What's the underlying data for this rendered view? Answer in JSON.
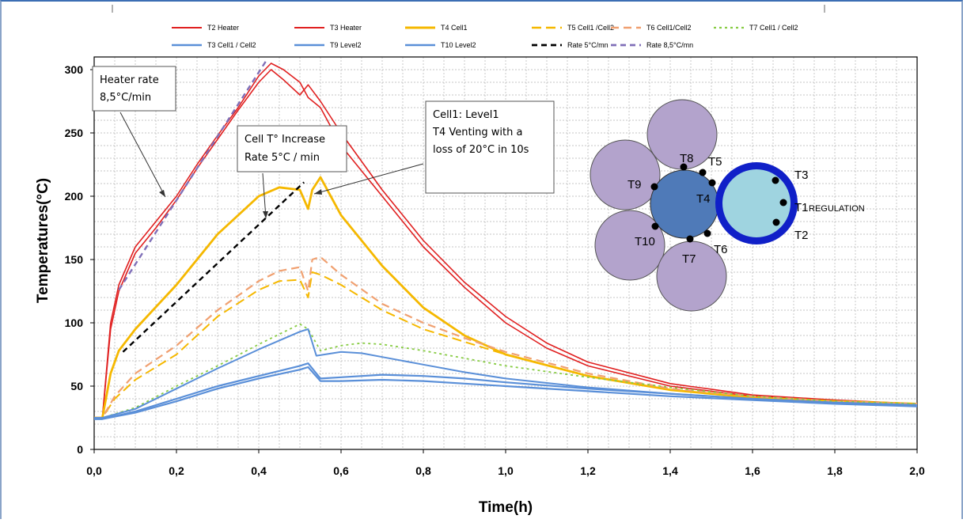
{
  "chart_data": {
    "type": "line",
    "xlabel": "Time(h)",
    "ylabel": "Temperatures(°C)",
    "xlim": [
      0,
      2
    ],
    "ylim": [
      0,
      310
    ],
    "xticks": [
      0,
      0.2,
      0.4,
      0.6,
      0.8,
      1.0,
      1.2,
      1.4,
      1.6,
      1.8,
      2.0
    ],
    "xtick_labels": [
      "0,0",
      "0,2",
      "0,4",
      "0,6",
      "0,8",
      "1,0",
      "1,2",
      "1,4",
      "1,6",
      "1,8",
      "2,0"
    ],
    "yticks": [
      0,
      50,
      100,
      150,
      200,
      250,
      300
    ],
    "ytick_labels": [
      "0",
      "50",
      "100",
      "150",
      "200",
      "250",
      "300"
    ],
    "grid": true,
    "legend_position": "top",
    "series": [
      {
        "name": "T2 Heater",
        "color": "#e02020",
        "dash": "solid",
        "width": 1.6,
        "x": [
          0.0,
          0.02,
          0.04,
          0.06,
          0.1,
          0.15,
          0.2,
          0.25,
          0.3,
          0.35,
          0.4,
          0.43,
          0.46,
          0.5,
          0.52,
          0.55,
          0.6,
          0.7,
          0.8,
          0.9,
          1.0,
          1.1,
          1.2,
          1.4,
          1.6,
          1.8,
          2.0
        ],
        "y": [
          25,
          25,
          100,
          130,
          160,
          180,
          200,
          225,
          248,
          270,
          295,
          305,
          300,
          290,
          278,
          270,
          240,
          200,
          160,
          128,
          100,
          80,
          66,
          50,
          42,
          38,
          36
        ]
      },
      {
        "name": "T3 Heater",
        "color": "#e02020",
        "dash": "solid",
        "width": 1.6,
        "x": [
          0.0,
          0.02,
          0.04,
          0.06,
          0.1,
          0.15,
          0.2,
          0.25,
          0.3,
          0.35,
          0.4,
          0.43,
          0.46,
          0.5,
          0.52,
          0.55,
          0.6,
          0.7,
          0.8,
          0.9,
          1.0,
          1.1,
          1.2,
          1.4,
          1.6,
          1.8,
          2.0
        ],
        "y": [
          25,
          25,
          95,
          125,
          155,
          175,
          197,
          222,
          245,
          268,
          290,
          300,
          292,
          280,
          288,
          275,
          250,
          205,
          165,
          132,
          105,
          84,
          69,
          52,
          43,
          39,
          36
        ]
      },
      {
        "name": "T4 Cell1",
        "color": "#f5b800",
        "dash": "solid",
        "width": 2.8,
        "x": [
          0.0,
          0.02,
          0.04,
          0.06,
          0.1,
          0.2,
          0.3,
          0.4,
          0.45,
          0.5,
          0.52,
          0.53,
          0.55,
          0.6,
          0.7,
          0.8,
          0.9,
          1.0,
          1.2,
          1.4,
          1.6,
          1.8,
          2.0
        ],
        "y": [
          25,
          25,
          60,
          78,
          95,
          130,
          170,
          200,
          207,
          205,
          190,
          205,
          215,
          185,
          145,
          112,
          90,
          75,
          58,
          47,
          41,
          38,
          36
        ]
      },
      {
        "name": "T5 Cell1 /Cell2",
        "color": "#f5b800",
        "dash": "12,6",
        "width": 2,
        "x": [
          0.0,
          0.02,
          0.05,
          0.1,
          0.2,
          0.3,
          0.4,
          0.45,
          0.5,
          0.52,
          0.53,
          0.55,
          0.6,
          0.7,
          0.8,
          0.9,
          1.0,
          1.2,
          1.4,
          1.6,
          1.8,
          2.0
        ],
        "y": [
          25,
          25,
          40,
          55,
          75,
          105,
          126,
          133,
          134,
          120,
          140,
          138,
          130,
          110,
          95,
          85,
          75,
          58,
          47,
          41,
          38,
          36
        ]
      },
      {
        "name": "T6 Cell1/Cell2",
        "color": "#f0a070",
        "dash": "10,6",
        "width": 2.2,
        "x": [
          0.0,
          0.02,
          0.05,
          0.1,
          0.2,
          0.3,
          0.4,
          0.45,
          0.5,
          0.52,
          0.53,
          0.55,
          0.6,
          0.7,
          0.8,
          0.9,
          1.0,
          1.2,
          1.4,
          1.6,
          1.8,
          2.0
        ],
        "y": [
          25,
          25,
          42,
          60,
          82,
          110,
          133,
          141,
          144,
          125,
          150,
          152,
          138,
          115,
          100,
          88,
          77,
          60,
          48,
          42,
          38,
          36
        ]
      },
      {
        "name": "T7 Cell1 / Cell2",
        "color": "#88cc44",
        "dash": "3,4",
        "width": 1.8,
        "x": [
          0.0,
          0.02,
          0.1,
          0.2,
          0.3,
          0.4,
          0.5,
          0.52,
          0.55,
          0.6,
          0.65,
          0.7,
          0.8,
          0.9,
          1.0,
          1.2,
          1.4,
          1.6,
          1.8,
          2.0
        ],
        "y": [
          25,
          25,
          33,
          50,
          66,
          83,
          99,
          95,
          78,
          82,
          84,
          83,
          78,
          72,
          66,
          57,
          49,
          42,
          38,
          36
        ]
      },
      {
        "name": "T3 Cell1 / Cell2",
        "color": "#5a8fd8",
        "dash": "solid",
        "width": 2,
        "x": [
          0.0,
          0.02,
          0.1,
          0.2,
          0.3,
          0.4,
          0.5,
          0.52,
          0.54,
          0.6,
          0.65,
          0.7,
          0.8,
          0.9,
          1.0,
          1.2,
          1.4,
          1.6,
          1.8,
          2.0
        ],
        "y": [
          25,
          25,
          32,
          48,
          64,
          79,
          93,
          95,
          74,
          77,
          76,
          73,
          67,
          61,
          56,
          49,
          44,
          40,
          37,
          35
        ]
      },
      {
        "name": "T9 Level2",
        "color": "#5a8fd8",
        "dash": "solid",
        "width": 2.2,
        "x": [
          0.0,
          0.02,
          0.1,
          0.2,
          0.3,
          0.4,
          0.5,
          0.52,
          0.55,
          0.6,
          0.7,
          0.8,
          0.9,
          1.0,
          1.2,
          1.4,
          1.6,
          1.8,
          2.0
        ],
        "y": [
          24,
          24,
          30,
          40,
          50,
          58,
          66,
          68,
          56,
          57,
          59,
          58,
          56,
          53,
          48,
          44,
          40,
          37,
          35
        ]
      },
      {
        "name": "T10 Level2",
        "color": "#5a8fd8",
        "dash": "solid",
        "width": 2.2,
        "x": [
          0.0,
          0.02,
          0.1,
          0.2,
          0.3,
          0.4,
          0.5,
          0.52,
          0.55,
          0.6,
          0.7,
          0.8,
          0.9,
          1.0,
          1.2,
          1.4,
          1.6,
          1.8,
          2.0
        ],
        "y": [
          24,
          24,
          29,
          38,
          48,
          56,
          63,
          65,
          54,
          54,
          55,
          54,
          52,
          50,
          46,
          42,
          39,
          36,
          34
        ]
      },
      {
        "name": "Rate 5°C/mn",
        "color": "#000000",
        "dash": "7,5",
        "width": 2.4,
        "x": [
          0.07,
          0.51
        ],
        "y": [
          77,
          211
        ]
      },
      {
        "name": "Rate 8,5°C/mn",
        "color": "#8070b8",
        "dash": "7,5",
        "width": 2.4,
        "x": [
          0.06,
          0.42
        ],
        "y": [
          126,
          308
        ]
      }
    ],
    "annotations": [
      {
        "lines": [
          "Heater rate",
          "8,5°C/min"
        ]
      },
      {
        "lines": [
          "Cell T° Increase",
          "Rate 5°C / min"
        ]
      },
      {
        "lines": [
          "Cell1:  Level1",
          "T4 Venting with a",
          "loss of 20°C in 10s"
        ]
      }
    ],
    "diagram_labels": [
      "T8",
      "T5",
      "T9",
      "T4",
      "T3",
      "T1",
      "T10",
      "T7",
      "T6",
      "T2",
      "REGULATION"
    ]
  },
  "colors": {
    "heater": "#e02020",
    "cell": "#f5b800",
    "blue": "#5a8fd8",
    "cylinder": "#b3a3cc",
    "center": "#4f7ab8",
    "core": "#9fd4e0",
    "ring": "#1020c8"
  }
}
